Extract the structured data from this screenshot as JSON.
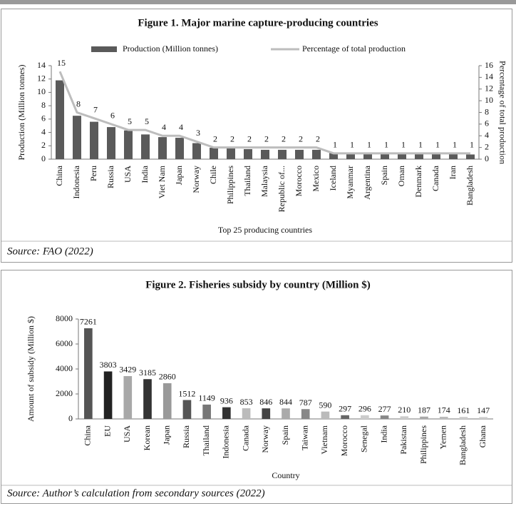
{
  "chart_data": [
    {
      "type": "bar",
      "title": "Figure 1. Major marine capture-producing countries",
      "x_label": "Top 25 producing countries",
      "y_label": "Production (Million  tonnes)",
      "y2_label": "Percentage of total production",
      "source": "Source: FAO (2022)",
      "categories": [
        "China",
        "Indonesia",
        "Peru",
        "Russia",
        "USA",
        "India",
        "Viet Nam",
        "Japan",
        "Norway",
        "Chile",
        "Philippines",
        "Thailand",
        "Malaysia",
        "Republic of...",
        "Morocco",
        "Mexico",
        "Iceland",
        "Myanmar",
        "Argentina",
        "Spain",
        "Oman",
        "Denmark",
        "Canada",
        "Iran",
        "Bangladesh"
      ],
      "series": [
        {
          "name": "Production (Million tonnes)",
          "color": "#5a5a5a",
          "type": "bar",
          "values": [
            11.8,
            6.5,
            5.6,
            4.8,
            4.3,
            3.7,
            3.3,
            3.2,
            2.4,
            1.7,
            1.7,
            1.5,
            1.4,
            1.4,
            1.4,
            1.4,
            0.9,
            0.8,
            0.8,
            0.8,
            0.8,
            0.8,
            0.8,
            0.8,
            0.7
          ]
        },
        {
          "name": "Percentage of total production",
          "color": "#bdbdbd",
          "type": "line",
          "axis": "y2",
          "values": [
            15,
            8,
            7,
            6,
            5,
            5,
            4,
            4,
            3,
            2,
            2,
            2,
            2,
            2,
            2,
            2,
            1,
            1,
            1,
            1,
            1,
            1,
            1,
            1,
            1
          ]
        }
      ],
      "ylim": [
        0,
        14
      ],
      "yticks": [
        0,
        2,
        4,
        6,
        8,
        10,
        12,
        14
      ],
      "y2lim": [
        0,
        16
      ],
      "y2ticks": [
        0,
        2,
        4,
        6,
        8,
        10,
        12,
        14,
        16
      ],
      "legend": "top"
    },
    {
      "type": "bar",
      "title": "Figure 2. Fisheries subsidy by country (Million $)",
      "x_label": "Country",
      "y_label": "Amount of subsidy (Million $)",
      "source": "Source: Author’s calculation from secondary sources (2022)",
      "categories": [
        "China",
        "EU",
        "USA",
        "Korean",
        "Japan",
        "Russia",
        "Thailand",
        "Indonesia",
        "Canada",
        "Norway",
        "Spain",
        "Taiwan",
        "Vietnam",
        "Morocco",
        "Senegal",
        "India",
        "Pakistan",
        "Philippines",
        "Yemen",
        "Bangladesh",
        "Ghana"
      ],
      "values": [
        7261,
        3803,
        3429,
        3185,
        2860,
        1512,
        1149,
        936,
        853,
        846,
        844,
        787,
        590,
        297,
        296,
        277,
        210,
        187,
        174,
        161,
        147
      ],
      "colors": [
        "#555555",
        "#222222",
        "#a8a8a8",
        "#333333",
        "#999999",
        "#555555",
        "#777777",
        "#333333",
        "#bbbbbb",
        "#444444",
        "#aaaaaa",
        "#888888",
        "#bbbbbb",
        "#666666",
        "#cccccc",
        "#888888",
        "#cccccc",
        "#aaaaaa",
        "#bbbbbb",
        "#cccccc",
        "#cccccc"
      ],
      "ylim": [
        0,
        8000
      ],
      "yticks": [
        0,
        2000,
        4000,
        6000,
        8000
      ]
    }
  ]
}
